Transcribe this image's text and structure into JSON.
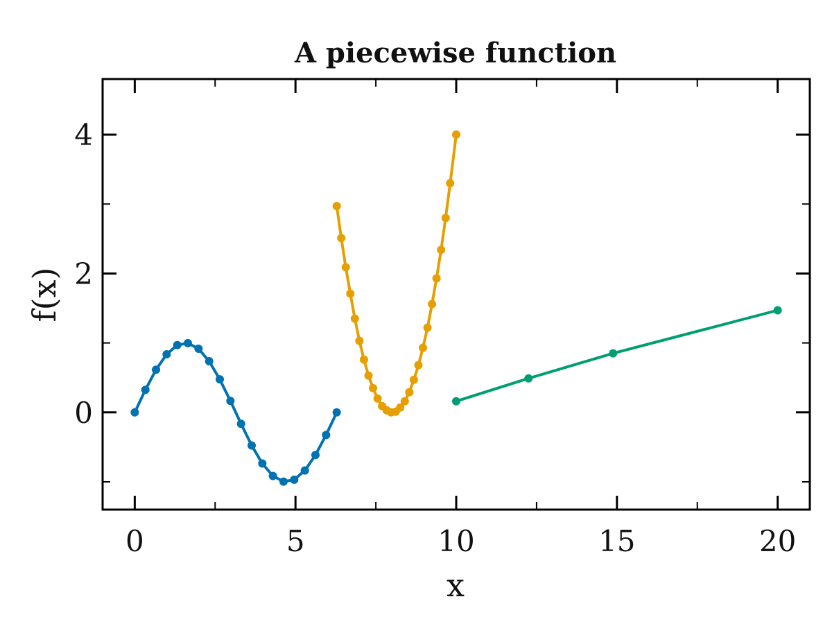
{
  "chart_data": {
    "type": "line",
    "title": "A piecewise function",
    "xlabel": "x",
    "ylabel": "f(x)",
    "xlim": [
      -1,
      21
    ],
    "ylim": [
      -1.4,
      4.8
    ],
    "xticks": [
      0,
      5,
      10,
      15,
      20
    ],
    "yticks": [
      0,
      2,
      4
    ],
    "xminor": [
      2.5,
      7.5,
      12.5,
      17.5
    ],
    "yminor": [
      -1,
      1,
      3
    ],
    "grid": false,
    "series": [
      {
        "color": "#0072B2",
        "x": [
          0,
          0.331,
          0.661,
          0.992,
          1.323,
          1.653,
          1.984,
          2.315,
          2.645,
          2.976,
          3.307,
          3.637,
          3.968,
          4.299,
          4.629,
          4.96,
          5.291,
          5.621,
          5.952,
          6.283
        ],
        "y": [
          0,
          0.325,
          0.614,
          0.837,
          0.969,
          0.997,
          0.916,
          0.736,
          0.476,
          0.165,
          -0.165,
          -0.476,
          -0.736,
          -0.916,
          -0.997,
          -0.969,
          -0.837,
          -0.614,
          -0.325,
          0
        ]
      },
      {
        "color": "#E69F00",
        "x": [
          6.283,
          6.424,
          6.565,
          6.706,
          6.847,
          6.988,
          7.13,
          7.271,
          7.412,
          7.553,
          7.694,
          7.835,
          7.977,
          8.118,
          8.259,
          8.4,
          8.541,
          8.682,
          8.824,
          8.965,
          9.106,
          9.247,
          9.388,
          9.529,
          9.671,
          9.812,
          10.0
        ],
        "y": [
          2.97,
          2.51,
          2.09,
          1.71,
          1.35,
          1.03,
          0.76,
          0.53,
          0.35,
          0.2,
          0.09,
          0.03,
          0.0,
          0.01,
          0.07,
          0.16,
          0.29,
          0.47,
          0.68,
          0.93,
          1.22,
          1.56,
          1.93,
          2.34,
          2.8,
          3.3,
          4.0
        ]
      },
      {
        "color": "#009E73",
        "x": [
          10,
          12.25,
          14.88,
          20
        ],
        "y": [
          0.16,
          0.49,
          0.85,
          1.47
        ]
      }
    ]
  }
}
